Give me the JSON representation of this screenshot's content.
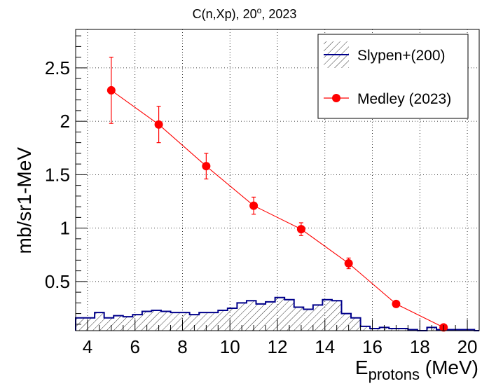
{
  "chart_data": {
    "type": "line",
    "title": "C(n,Xp), 20°, 2023",
    "title_parts": {
      "prefix": "C(n,Xp), 20",
      "superscript": "o",
      "suffix": ", 2023"
    },
    "xlabel": {
      "main": "E",
      "subscript": "protons",
      "unit": " (MeV)"
    },
    "ylabel": "mb/sr1-MeV",
    "xlim": [
      3.5,
      20.5
    ],
    "ylim": [
      0.04,
      2.86
    ],
    "grid": true,
    "legend_position": "top-right",
    "x_ticks": [
      4,
      6,
      8,
      10,
      12,
      14,
      16,
      18,
      20
    ],
    "y_ticks": [
      0.5,
      1,
      1.5,
      2,
      2.5
    ],
    "y_tick_labels": [
      "0.5",
      "1",
      "1.5",
      "2",
      "2.5"
    ],
    "series": [
      {
        "name": "Slypen+(200)",
        "kind": "histogram",
        "color": "#00008b",
        "bin_width": 0.4,
        "bin_start": 3.5,
        "values": [
          0.16,
          0.16,
          0.21,
          0.16,
          0.18,
          0.17,
          0.19,
          0.22,
          0.23,
          0.22,
          0.21,
          0.21,
          0.19,
          0.21,
          0.21,
          0.23,
          0.25,
          0.3,
          0.32,
          0.29,
          0.31,
          0.35,
          0.33,
          0.26,
          0.24,
          0.28,
          0.33,
          0.32,
          0.2,
          0.16,
          0.08,
          0.06,
          0.07,
          0.06,
          0.06,
          0.05,
          0.04,
          0.07,
          0.05,
          0.05,
          0.05,
          0.05,
          0.04
        ]
      },
      {
        "name": "Medley (2023)",
        "kind": "points",
        "color": "#ff0000",
        "x": [
          5,
          7,
          9,
          11,
          13,
          15,
          17,
          19
        ],
        "y": [
          2.29,
          1.97,
          1.58,
          1.21,
          0.99,
          0.67,
          0.29,
          0.07
        ],
        "y_err": [
          0.31,
          0.17,
          0.12,
          0.08,
          0.06,
          0.05,
          0.03,
          0.01
        ]
      }
    ]
  }
}
